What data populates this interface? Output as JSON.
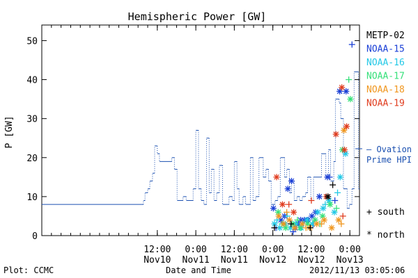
{
  "chart_data": {
    "type": "scatter",
    "title": "Hemispheric Power [GW]",
    "xlabel": "Date and Time",
    "ylabel": "P [GW]",
    "x_range": [
      "2012-11-09T00:00",
      "2012-11-13T03:00"
    ],
    "ylim": [
      0,
      54
    ],
    "y_ticks": [
      0,
      10,
      20,
      30,
      40,
      50
    ],
    "x_ticks": [
      {
        "time": "2012-11-10T12:00",
        "top": "12:00",
        "bottom": "Nov10"
      },
      {
        "time": "2012-11-11T00:00",
        "top": "0:00",
        "bottom": "Nov11"
      },
      {
        "time": "2012-11-11T12:00",
        "top": "12:00",
        "bottom": "Nov11"
      },
      {
        "time": "2012-11-12T00:00",
        "top": "0:00",
        "bottom": "Nov12"
      },
      {
        "time": "2012-11-12T12:00",
        "top": "12:00",
        "bottom": "Nov12"
      },
      {
        "time": "2012-11-13T00:00",
        "top": "0:00",
        "bottom": "Nov13"
      }
    ],
    "grid": false,
    "legend": {
      "position": "right",
      "satellites": [
        {
          "name": "METP-02",
          "color": "#000000"
        },
        {
          "name": "NOAA-15",
          "color": "#1a3fd6"
        },
        {
          "name": "NOAA-16",
          "color": "#22c8e6"
        },
        {
          "name": "NOAA-17",
          "color": "#36e07a"
        },
        {
          "name": "NOAA-18",
          "color": "#f0961e"
        },
        {
          "name": "NOAA-19",
          "color": "#e03c1e"
        }
      ],
      "ovation_label_line1": "– Ovation",
      "ovation_label_line2": "Prime HPI",
      "ovation_color": "#1a4fb0",
      "south_label": "+ south",
      "north_label": "* north"
    },
    "ovation_step": [
      [
        "2012-11-09T00:00",
        8
      ],
      [
        "2012-11-10T07:40",
        9
      ],
      [
        "2012-11-10T08:10",
        11
      ],
      [
        "2012-11-10T09:00",
        12
      ],
      [
        "2012-11-10T09:40",
        14
      ],
      [
        "2012-11-10T10:30",
        16
      ],
      [
        "2012-11-10T11:10",
        23
      ],
      [
        "2012-11-10T12:00",
        21
      ],
      [
        "2012-11-10T12:40",
        19
      ],
      [
        "2012-11-10T16:30",
        20
      ],
      [
        "2012-11-10T17:20",
        17
      ],
      [
        "2012-11-10T18:10",
        9
      ],
      [
        "2012-11-10T20:00",
        10
      ],
      [
        "2012-11-10T21:00",
        9
      ],
      [
        "2012-11-10T23:10",
        12
      ],
      [
        "2012-11-11T00:00",
        27
      ],
      [
        "2012-11-11T00:50",
        12
      ],
      [
        "2012-11-11T01:40",
        9
      ],
      [
        "2012-11-11T02:30",
        8
      ],
      [
        "2012-11-11T03:20",
        25
      ],
      [
        "2012-11-11T04:10",
        11
      ],
      [
        "2012-11-11T04:50",
        17
      ],
      [
        "2012-11-11T05:40",
        9
      ],
      [
        "2012-11-11T06:30",
        11
      ],
      [
        "2012-11-11T07:20",
        18
      ],
      [
        "2012-11-11T08:20",
        8
      ],
      [
        "2012-11-11T10:20",
        10
      ],
      [
        "2012-11-11T11:20",
        9
      ],
      [
        "2012-11-11T12:00",
        19
      ],
      [
        "2012-11-11T12:50",
        12
      ],
      [
        "2012-11-11T13:30",
        8
      ],
      [
        "2012-11-11T14:40",
        10
      ],
      [
        "2012-11-11T15:30",
        8
      ],
      [
        "2012-11-11T17:00",
        20
      ],
      [
        "2012-11-11T17:50",
        9
      ],
      [
        "2012-11-11T18:40",
        10
      ],
      [
        "2012-11-11T19:40",
        20
      ],
      [
        "2012-11-11T21:00",
        15
      ],
      [
        "2012-11-11T21:50",
        17
      ],
      [
        "2012-11-11T22:40",
        14
      ],
      [
        "2012-11-11T23:30",
        8
      ],
      [
        "2012-11-12T00:40",
        9
      ],
      [
        "2012-11-12T01:30",
        10
      ],
      [
        "2012-11-12T02:20",
        20
      ],
      [
        "2012-11-12T03:40",
        15
      ],
      [
        "2012-11-12T04:20",
        17
      ],
      [
        "2012-11-12T05:10",
        11
      ],
      [
        "2012-11-12T05:50",
        14
      ],
      [
        "2012-11-12T06:40",
        9
      ],
      [
        "2012-11-12T07:30",
        10
      ],
      [
        "2012-11-12T08:20",
        9
      ],
      [
        "2012-11-12T09:10",
        10
      ],
      [
        "2012-11-12T10:10",
        11
      ],
      [
        "2012-11-12T10:50",
        15
      ],
      [
        "2012-11-12T11:50",
        9
      ],
      [
        "2012-11-12T12:40",
        15
      ],
      [
        "2012-11-12T15:10",
        21
      ],
      [
        "2012-11-12T16:30",
        15
      ],
      [
        "2012-11-12T17:20",
        22
      ],
      [
        "2012-11-12T18:00",
        14
      ],
      [
        "2012-11-12T19:00",
        19
      ],
      [
        "2012-11-12T19:30",
        35
      ],
      [
        "2012-11-12T20:40",
        34
      ],
      [
        "2012-11-12T21:10",
        30
      ],
      [
        "2012-11-12T22:00",
        12
      ],
      [
        "2012-11-12T23:10",
        7
      ],
      [
        "2012-11-12T23:50",
        8
      ],
      [
        "2012-11-13T00:40",
        12
      ],
      [
        "2012-11-13T01:20",
        42
      ],
      [
        "2012-11-13T02:40",
        12
      ],
      [
        "2012-11-13T03:00",
        12
      ]
    ],
    "measurements": [
      {
        "sat": "NOAA-15",
        "t": "2012-11-12T00:10",
        "p": 7,
        "h": "north"
      },
      {
        "sat": "NOAA-15",
        "t": "2012-11-12T02:30",
        "p": 4,
        "h": "north"
      },
      {
        "sat": "NOAA-15",
        "t": "2012-11-12T03:40",
        "p": 5,
        "h": "north"
      },
      {
        "sat": "NOAA-15",
        "t": "2012-11-12T04:40",
        "p": 12,
        "h": "north"
      },
      {
        "sat": "NOAA-15",
        "t": "2012-11-12T05:50",
        "p": 14,
        "h": "north"
      },
      {
        "sat": "NOAA-15",
        "t": "2012-11-12T07:00",
        "p": 2,
        "h": "north"
      },
      {
        "sat": "NOAA-15",
        "t": "2012-11-12T08:00",
        "p": 3,
        "h": "north"
      },
      {
        "sat": "NOAA-15",
        "t": "2012-11-12T08:40",
        "p": 4,
        "h": "north"
      },
      {
        "sat": "NOAA-15",
        "t": "2012-11-12T09:50",
        "p": 4,
        "h": "north"
      },
      {
        "sat": "NOAA-15",
        "t": "2012-11-12T11:00",
        "p": 4,
        "h": "north"
      },
      {
        "sat": "NOAA-15",
        "t": "2012-11-12T12:10",
        "p": 5,
        "h": "north"
      },
      {
        "sat": "NOAA-15",
        "t": "2012-11-12T13:20",
        "p": 6,
        "h": "north"
      },
      {
        "sat": "NOAA-15",
        "t": "2012-11-12T14:30",
        "p": 10,
        "h": "north"
      },
      {
        "sat": "NOAA-15",
        "t": "2012-11-12T17:00",
        "p": 15,
        "h": "north"
      },
      {
        "sat": "NOAA-15",
        "t": "2012-11-12T20:50",
        "p": 37,
        "h": "north"
      },
      {
        "sat": "NOAA-15",
        "t": "2012-11-12T22:50",
        "p": 37,
        "h": "north"
      },
      {
        "sat": "NOAA-15",
        "t": "2012-11-13T00:40",
        "p": 49,
        "h": "south"
      },
      {
        "sat": "NOAA-15",
        "t": "2012-11-12T01:00",
        "p": 2,
        "h": "south"
      },
      {
        "sat": "NOAA-15",
        "t": "2012-11-12T06:20",
        "p": 1,
        "h": "south"
      },
      {
        "sat": "NOAA-15",
        "t": "2012-11-12T12:40",
        "p": 3,
        "h": "south"
      },
      {
        "sat": "NOAA-15",
        "t": "2012-11-12T17:40",
        "p": 15,
        "h": "south"
      },
      {
        "sat": "NOAA-15",
        "t": "2012-11-12T19:20",
        "p": 9,
        "h": "south"
      },
      {
        "sat": "NOAA-16",
        "t": "2012-11-12T00:30",
        "p": 3,
        "h": "north"
      },
      {
        "sat": "NOAA-16",
        "t": "2012-11-12T02:10",
        "p": 2,
        "h": "north"
      },
      {
        "sat": "NOAA-16",
        "t": "2012-11-12T03:50",
        "p": 3,
        "h": "north"
      },
      {
        "sat": "NOAA-16",
        "t": "2012-11-12T05:30",
        "p": 2,
        "h": "north"
      },
      {
        "sat": "NOAA-16",
        "t": "2012-11-12T07:10",
        "p": 3,
        "h": "north"
      },
      {
        "sat": "NOAA-16",
        "t": "2012-11-12T08:50",
        "p": 2,
        "h": "north"
      },
      {
        "sat": "NOAA-16",
        "t": "2012-11-12T10:40",
        "p": 4,
        "h": "north"
      },
      {
        "sat": "NOAA-16",
        "t": "2012-11-12T12:20",
        "p": 3,
        "h": "north"
      },
      {
        "sat": "NOAA-16",
        "t": "2012-11-12T14:00",
        "p": 6,
        "h": "north"
      },
      {
        "sat": "NOAA-16",
        "t": "2012-11-12T15:40",
        "p": 7,
        "h": "north"
      },
      {
        "sat": "NOAA-16",
        "t": "2012-11-12T17:30",
        "p": 9,
        "h": "north"
      },
      {
        "sat": "NOAA-16",
        "t": "2012-11-12T19:10",
        "p": 6,
        "h": "north"
      },
      {
        "sat": "NOAA-16",
        "t": "2012-11-12T21:00",
        "p": 15,
        "h": "north"
      },
      {
        "sat": "NOAA-16",
        "t": "2012-11-12T22:40",
        "p": 21,
        "h": "north"
      },
      {
        "sat": "NOAA-16",
        "t": "2012-11-12T01:20",
        "p": 4,
        "h": "south"
      },
      {
        "sat": "NOAA-16",
        "t": "2012-11-12T04:30",
        "p": 5,
        "h": "south"
      },
      {
        "sat": "NOAA-16",
        "t": "2012-11-12T09:30",
        "p": 3,
        "h": "south"
      },
      {
        "sat": "NOAA-16",
        "t": "2012-11-12T16:20",
        "p": 8,
        "h": "south"
      },
      {
        "sat": "NOAA-16",
        "t": "2012-11-12T20:10",
        "p": 11,
        "h": "south"
      },
      {
        "sat": "NOAA-17",
        "t": "2012-11-12T01:40",
        "p": 6,
        "h": "north"
      },
      {
        "sat": "NOAA-17",
        "t": "2012-11-12T04:00",
        "p": 2,
        "h": "north"
      },
      {
        "sat": "NOAA-17",
        "t": "2012-11-12T06:10",
        "p": 3,
        "h": "north"
      },
      {
        "sat": "NOAA-17",
        "t": "2012-11-12T08:30",
        "p": 2,
        "h": "north"
      },
      {
        "sat": "NOAA-17",
        "t": "2012-11-12T10:50",
        "p": 3,
        "h": "north"
      },
      {
        "sat": "NOAA-17",
        "t": "2012-11-12T13:10",
        "p": 4,
        "h": "north"
      },
      {
        "sat": "NOAA-17",
        "t": "2012-11-12T15:30",
        "p": 5,
        "h": "north"
      },
      {
        "sat": "NOAA-17",
        "t": "2012-11-12T17:50",
        "p": 8,
        "h": "north"
      },
      {
        "sat": "NOAA-17",
        "t": "2012-11-12T21:40",
        "p": 22,
        "h": "north"
      },
      {
        "sat": "NOAA-17",
        "t": "2012-11-13T00:10",
        "p": 35,
        "h": "north"
      },
      {
        "sat": "NOAA-17",
        "t": "2012-11-12T02:50",
        "p": 3,
        "h": "south"
      },
      {
        "sat": "NOAA-17",
        "t": "2012-11-12T07:40",
        "p": 4,
        "h": "south"
      },
      {
        "sat": "NOAA-17",
        "t": "2012-11-12T14:40",
        "p": 3,
        "h": "south"
      },
      {
        "sat": "NOAA-17",
        "t": "2012-11-12T19:50",
        "p": 7,
        "h": "south"
      },
      {
        "sat": "NOAA-17",
        "t": "2012-11-12T23:40",
        "p": 40,
        "h": "south"
      },
      {
        "sat": "NOAA-18",
        "t": "2012-11-12T01:50",
        "p": 5,
        "h": "north"
      },
      {
        "sat": "NOAA-18",
        "t": "2012-11-12T03:20",
        "p": 3,
        "h": "north"
      },
      {
        "sat": "NOAA-18",
        "t": "2012-11-12T05:10",
        "p": 4,
        "h": "north"
      },
      {
        "sat": "NOAA-18",
        "t": "2012-11-12T06:50",
        "p": 2,
        "h": "north"
      },
      {
        "sat": "NOAA-18",
        "t": "2012-11-12T09:10",
        "p": 3,
        "h": "north"
      },
      {
        "sat": "NOAA-18",
        "t": "2012-11-12T11:30",
        "p": 2,
        "h": "north"
      },
      {
        "sat": "NOAA-18",
        "t": "2012-11-12T13:40",
        "p": 3,
        "h": "north"
      },
      {
        "sat": "NOAA-18",
        "t": "2012-11-12T16:00",
        "p": 4,
        "h": "north"
      },
      {
        "sat": "NOAA-18",
        "t": "2012-11-12T18:20",
        "p": 2,
        "h": "north"
      },
      {
        "sat": "NOAA-18",
        "t": "2012-11-12T20:30",
        "p": 4,
        "h": "north"
      },
      {
        "sat": "NOAA-18",
        "t": "2012-11-12T22:10",
        "p": 27,
        "h": "north"
      },
      {
        "sat": "NOAA-18",
        "t": "2012-11-12T04:20",
        "p": 6,
        "h": "south"
      },
      {
        "sat": "NOAA-18",
        "t": "2012-11-12T10:20",
        "p": 2,
        "h": "south"
      },
      {
        "sat": "NOAA-18",
        "t": "2012-11-12T15:10",
        "p": 3,
        "h": "south"
      },
      {
        "sat": "NOAA-18",
        "t": "2012-11-12T21:20",
        "p": 3,
        "h": "south"
      },
      {
        "sat": "NOAA-19",
        "t": "2012-11-12T01:10",
        "p": 15,
        "h": "north"
      },
      {
        "sat": "NOAA-19",
        "t": "2012-11-12T03:00",
        "p": 8,
        "h": "north"
      },
      {
        "sat": "NOAA-19",
        "t": "2012-11-12T06:30",
        "p": 6,
        "h": "north"
      },
      {
        "sat": "NOAA-19",
        "t": "2012-11-12T16:40",
        "p": 10,
        "h": "north"
      },
      {
        "sat": "NOAA-19",
        "t": "2012-11-12T19:40",
        "p": 26,
        "h": "north"
      },
      {
        "sat": "NOAA-19",
        "t": "2012-11-12T21:30",
        "p": 38,
        "h": "north"
      },
      {
        "sat": "NOAA-19",
        "t": "2012-11-12T23:00",
        "p": 28,
        "h": "north"
      },
      {
        "sat": "NOAA-19",
        "t": "2012-11-12T22:20",
        "p": 22,
        "h": "north"
      },
      {
        "sat": "NOAA-19",
        "t": "2012-11-12T05:00",
        "p": 8,
        "h": "south"
      },
      {
        "sat": "NOAA-19",
        "t": "2012-11-12T12:00",
        "p": 9,
        "h": "south"
      },
      {
        "sat": "NOAA-19",
        "t": "2012-11-12T21:50",
        "p": 5,
        "h": "south"
      },
      {
        "sat": "METP-02",
        "t": "2012-11-12T00:30",
        "p": 2,
        "h": "south"
      },
      {
        "sat": "METP-02",
        "t": "2012-11-12T05:40",
        "p": 3,
        "h": "south"
      },
      {
        "sat": "METP-02",
        "t": "2012-11-12T11:40",
        "p": 2,
        "h": "south"
      },
      {
        "sat": "METP-02",
        "t": "2012-11-12T18:40",
        "p": 13,
        "h": "south"
      },
      {
        "sat": "METP-02",
        "t": "2012-11-12T17:10",
        "p": 10,
        "h": "north"
      }
    ]
  },
  "footer": {
    "plot_credit": "Plot: CCMC",
    "timestamp": "2012/11/13 03:05:06"
  }
}
